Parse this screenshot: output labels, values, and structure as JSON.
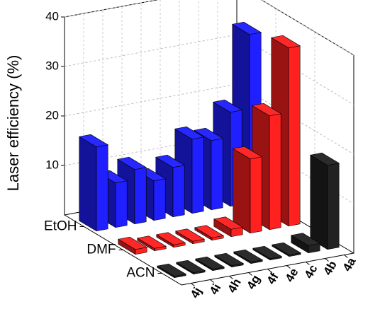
{
  "chart_data": {
    "type": "bar3d",
    "ylabel": "Laser efficiency (%)",
    "categories": [
      "4j",
      "4i",
      "4h",
      "4g",
      "4f",
      "4e",
      "4c",
      "4b",
      "4a"
    ],
    "series": [
      {
        "name": "EtOH",
        "color": "#1f1fff",
        "values": [
          17,
          9,
          11,
          8,
          10,
          15,
          14,
          19,
          34
        ]
      },
      {
        "name": "DMF",
        "color": "#ff2020",
        "values": [
          1,
          0.5,
          0.5,
          0.5,
          0.5,
          1.5,
          15,
          23,
          36
        ]
      },
      {
        "name": "ACN",
        "color": "#222222",
        "values": [
          0.3,
          0.3,
          0.3,
          0.3,
          0.3,
          0.3,
          0.3,
          1.5,
          17
        ]
      }
    ],
    "ylim": [
      0,
      40
    ],
    "yticks": [
      10,
      20,
      30,
      40
    ],
    "grid": true
  }
}
